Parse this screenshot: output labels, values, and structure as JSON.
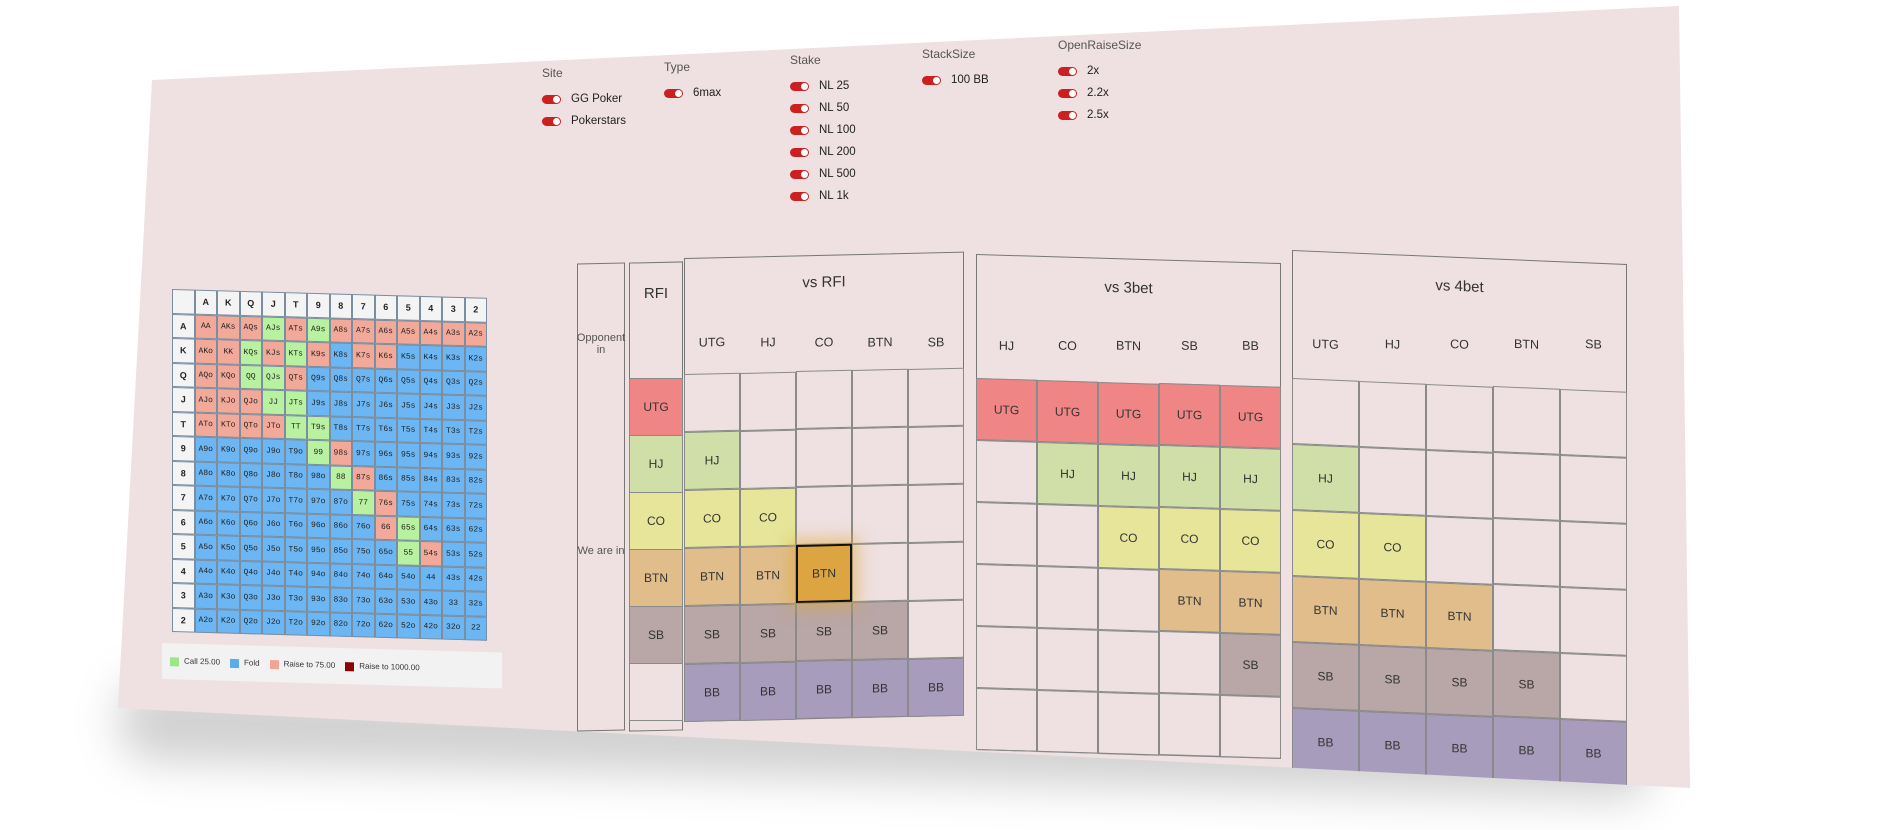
{
  "filters": {
    "site": {
      "title": "Site",
      "options": [
        "GG Poker",
        "Pokerstars"
      ]
    },
    "type": {
      "title": "Type",
      "options": [
        "6max"
      ]
    },
    "stake": {
      "title": "Stake",
      "options": [
        "NL 25",
        "NL 50",
        "NL 100",
        "NL 200",
        "NL 500",
        "NL 1k"
      ]
    },
    "stacksize": {
      "title": "StackSize",
      "options": [
        "100 BB"
      ]
    },
    "openraise": {
      "title": "OpenRaiseSize",
      "options": [
        "2x",
        "2.2x",
        "2.5x"
      ]
    }
  },
  "hand_grid": {
    "ranks": [
      "A",
      "K",
      "Q",
      "J",
      "T",
      "9",
      "8",
      "7",
      "6",
      "5",
      "4",
      "3",
      "2"
    ],
    "cells": [
      [
        "AA",
        "AKs",
        "AQs",
        "AJs",
        "ATs",
        "A9s",
        "A8s",
        "A7s",
        "A6s",
        "A5s",
        "A4s",
        "A3s",
        "A2s"
      ],
      [
        "AKo",
        "KK",
        "KQs",
        "KJs",
        "KTs",
        "K9s",
        "K8s",
        "K7s",
        "K6s",
        "K5s",
        "K4s",
        "K3s",
        "K2s"
      ],
      [
        "AQo",
        "KQo",
        "QQ",
        "QJs",
        "QTs",
        "Q9s",
        "Q8s",
        "Q7s",
        "Q6s",
        "Q5s",
        "Q4s",
        "Q3s",
        "Q2s"
      ],
      [
        "AJo",
        "KJo",
        "QJo",
        "JJ",
        "JTs",
        "J9s",
        "J8s",
        "J7s",
        "J6s",
        "J5s",
        "J4s",
        "J3s",
        "J2s"
      ],
      [
        "ATo",
        "KTo",
        "QTo",
        "JTo",
        "TT",
        "T9s",
        "T8s",
        "T7s",
        "T6s",
        "T5s",
        "T4s",
        "T3s",
        "T2s"
      ],
      [
        "A9o",
        "K9o",
        "Q9o",
        "J9o",
        "T9o",
        "99",
        "98s",
        "97s",
        "96s",
        "95s",
        "94s",
        "93s",
        "92s"
      ],
      [
        "A8o",
        "K8o",
        "Q8o",
        "J8o",
        "T8o",
        "98o",
        "88",
        "87s",
        "86s",
        "85s",
        "84s",
        "83s",
        "82s"
      ],
      [
        "A7o",
        "K7o",
        "Q7o",
        "J7o",
        "T7o",
        "97o",
        "87o",
        "77",
        "76s",
        "75s",
        "74s",
        "73s",
        "72s"
      ],
      [
        "A6o",
        "K6o",
        "Q6o",
        "J6o",
        "T6o",
        "96o",
        "86o",
        "76o",
        "66",
        "65s",
        "64s",
        "63s",
        "62s"
      ],
      [
        "A5o",
        "K5o",
        "Q5o",
        "J5o",
        "T5o",
        "95o",
        "85o",
        "75o",
        "65o",
        "55",
        "54s",
        "53s",
        "52s"
      ],
      [
        "A4o",
        "K4o",
        "Q4o",
        "J4o",
        "T4o",
        "94o",
        "84o",
        "74o",
        "64o",
        "54o",
        "44",
        "43s",
        "42s"
      ],
      [
        "A3o",
        "K3o",
        "Q3o",
        "J3o",
        "T3o",
        "93o",
        "83o",
        "73o",
        "63o",
        "53o",
        "43o",
        "33",
        "32s"
      ],
      [
        "A2o",
        "K2o",
        "Q2o",
        "J2o",
        "T2o",
        "92o",
        "82o",
        "72o",
        "62o",
        "52o",
        "42o",
        "32o",
        "22"
      ]
    ],
    "actions": [
      "RRRCRCRRRRRRR",
      "RRCRCRFRRFFFF",
      "RRCCRFFFFFFFF",
      "RRRCCFFFFFFFF",
      "RRRRCCFFFFFFF",
      "FFFFFCRFFFFFF",
      "FFFFFFCRFFFFF",
      "FFFFFFFCRFFFF",
      "FFFFFFFFRCFFF",
      "FFFFFFFFFCRFF",
      "FFFFFFFFFFFFF",
      "FFFFFFFFFFFFF",
      "FFFFFFFFFFFFF"
    ],
    "action_colors": {
      "C": "#b8f1a0",
      "F": "#6cb6f3",
      "R": "#f2a99a"
    },
    "legend": [
      {
        "label": "Call 25.00",
        "color": "#9ee58a"
      },
      {
        "label": "Fold",
        "color": "#5aabf0"
      },
      {
        "label": "Raise to 75.00",
        "color": "#f4a496"
      },
      {
        "label": "Raise to 1000.00",
        "color": "#8b0000"
      }
    ]
  },
  "scenarios": {
    "opponent_label": "Opponent in",
    "we_are_in_label": "We are in",
    "rfi": {
      "title": "RFI",
      "cells": [
        "UTG",
        "HJ",
        "CO",
        "BTN",
        "SB",
        ""
      ]
    },
    "vs_rfi": {
      "title": "vs RFI",
      "columns": [
        "UTG",
        "HJ",
        "CO",
        "BTN",
        "SB"
      ],
      "rows": [
        [
          "",
          "",
          "",
          "",
          ""
        ],
        [
          "HJ",
          "",
          "",
          "",
          ""
        ],
        [
          "CO",
          "CO",
          "",
          "",
          ""
        ],
        [
          "BTN",
          "BTN",
          "BTN",
          "",
          ""
        ],
        [
          "SB",
          "SB",
          "SB",
          "SB",
          ""
        ],
        [
          "BB",
          "BB",
          "BB",
          "BB",
          "BB"
        ]
      ]
    },
    "vs_3bet": {
      "title": "vs 3bet",
      "columns": [
        "HJ",
        "CO",
        "BTN",
        "SB",
        "BB"
      ],
      "rows": [
        [
          "UTG",
          "UTG",
          "UTG",
          "UTG",
          "UTG"
        ],
        [
          "",
          "HJ",
          "HJ",
          "HJ",
          "HJ"
        ],
        [
          "",
          "",
          "CO",
          "CO",
          "CO"
        ],
        [
          "",
          "",
          "",
          "BTN",
          "BTN"
        ],
        [
          "",
          "",
          "",
          "",
          "SB"
        ],
        [
          "",
          "",
          "",
          "",
          ""
        ]
      ]
    },
    "vs_4bet": {
      "title": "vs 4bet",
      "columns": [
        "UTG",
        "HJ",
        "CO",
        "BTN",
        "SB"
      ],
      "rows": [
        [
          "",
          "",
          "",
          "",
          ""
        ],
        [
          "HJ",
          "",
          "",
          "",
          ""
        ],
        [
          "CO",
          "CO",
          "",
          "",
          ""
        ],
        [
          "BTN",
          "BTN",
          "BTN",
          "",
          ""
        ],
        [
          "SB",
          "SB",
          "SB",
          "SB",
          ""
        ],
        [
          "BB",
          "BB",
          "BB",
          "BB",
          "BB"
        ]
      ]
    },
    "selected": {
      "section": "vs_rfi",
      "row": 3,
      "col": 2
    }
  }
}
